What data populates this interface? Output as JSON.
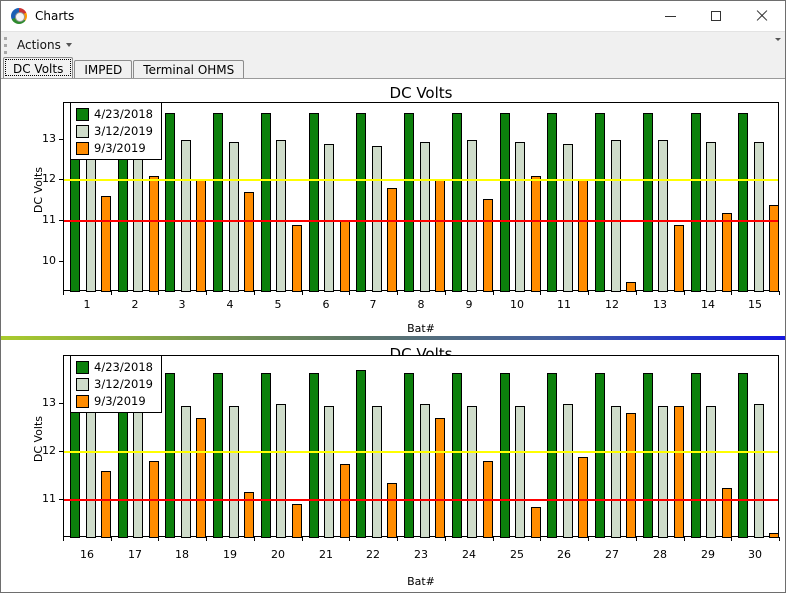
{
  "window": {
    "title": "Charts",
    "icons": {
      "app": "charts-app-icon",
      "minimize": "minimize-icon",
      "maximize": "maximize-icon",
      "close": "close-icon"
    }
  },
  "toolbar": {
    "actions_label": "Actions",
    "dropdown_icon": "caret-down",
    "overflow_icon": "caret-down-small"
  },
  "tabs": [
    {
      "label": "DC Volts",
      "active": true
    },
    {
      "label": "IMPED",
      "active": false
    },
    {
      "label": "Terminal OHMS",
      "active": false
    }
  ],
  "colors": {
    "series_green": "#0c800c",
    "series_gray": "#cfdcca",
    "series_orange": "#ff8c00",
    "strip_yellow": "#ffff00",
    "strip_red": "#ff0000",
    "separator_gradient": [
      "#a9cb2d",
      "#5d7668",
      "#1616e0"
    ]
  },
  "chart_data": [
    {
      "type": "bar",
      "title": "DC Volts",
      "xlabel": "Bat#",
      "ylabel": "DC Volts",
      "categories": [
        "1",
        "2",
        "3",
        "4",
        "5",
        "6",
        "7",
        "8",
        "9",
        "10",
        "11",
        "12",
        "13",
        "14",
        "15"
      ],
      "series": [
        {
          "name": "4/23/2018",
          "color": "#0c800c",
          "values": [
            13.65,
            13.65,
            13.65,
            13.65,
            13.65,
            13.65,
            13.65,
            13.65,
            13.65,
            13.65,
            13.65,
            13.65,
            13.65,
            13.65,
            13.65
          ]
        },
        {
          "name": "3/12/2019",
          "color": "#cfdcca",
          "values": [
            13.0,
            13.0,
            13.0,
            12.95,
            13.0,
            12.9,
            12.85,
            12.95,
            13.0,
            12.95,
            12.9,
            13.0,
            13.0,
            12.95,
            12.95
          ]
        },
        {
          "name": "9/3/2019",
          "color": "#ff8c00",
          "values": [
            11.6,
            12.1,
            12.0,
            11.7,
            10.9,
            11.0,
            11.8,
            12.0,
            11.55,
            12.1,
            12.0,
            9.5,
            10.9,
            11.2,
            11.4
          ]
        }
      ],
      "ylim": [
        9.25,
        13.9
      ],
      "yticks": [
        10,
        11,
        12,
        13
      ],
      "strip_lines": [
        {
          "value": 12,
          "color": "#ffff00"
        },
        {
          "value": 11,
          "color": "#ff0000"
        }
      ],
      "grid": false,
      "legend_position": "top-left"
    },
    {
      "type": "bar",
      "title": "DC Volts",
      "xlabel": "Bat#",
      "ylabel": "DC Volts",
      "categories": [
        "16",
        "17",
        "18",
        "19",
        "20",
        "21",
        "22",
        "23",
        "24",
        "25",
        "26",
        "27",
        "28",
        "29",
        "30"
      ],
      "series": [
        {
          "name": "4/23/2018",
          "color": "#0c800c",
          "values": [
            13.65,
            13.65,
            13.65,
            13.65,
            13.65,
            13.65,
            13.7,
            13.65,
            13.65,
            13.65,
            13.65,
            13.65,
            13.65,
            13.65,
            13.65
          ]
        },
        {
          "name": "3/12/2019",
          "color": "#cfdcca",
          "values": [
            12.95,
            13.0,
            12.95,
            12.95,
            13.0,
            12.95,
            12.95,
            13.0,
            12.95,
            12.95,
            13.0,
            12.95,
            12.95,
            12.95,
            13.0
          ]
        },
        {
          "name": "9/3/2019",
          "color": "#ff8c00",
          "values": [
            11.6,
            11.8,
            12.7,
            11.15,
            10.9,
            11.75,
            11.35,
            12.7,
            11.8,
            10.85,
            11.9,
            12.8,
            12.95,
            11.25,
            10.3
          ]
        }
      ],
      "ylim": [
        10.2,
        14.0
      ],
      "yticks": [
        11,
        12,
        13
      ],
      "strip_lines": [
        {
          "value": 12,
          "color": "#ffff00"
        },
        {
          "value": 11,
          "color": "#ff0000"
        }
      ],
      "grid": false,
      "legend_position": "top-left"
    }
  ]
}
